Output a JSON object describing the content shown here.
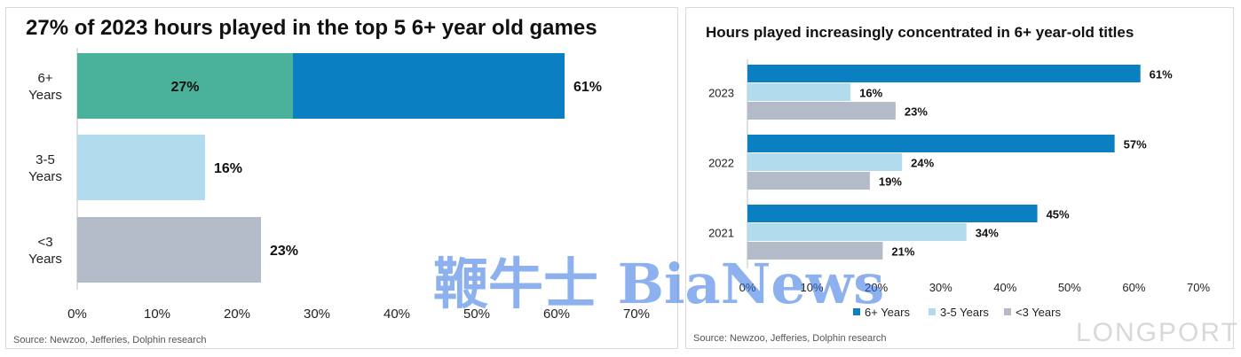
{
  "colors": {
    "six_plus": "#0a7fc1",
    "three_five": "#b3dbee",
    "under_three": "#b4bbc8",
    "top5": "#4ab19a"
  },
  "chart_data": [
    {
      "type": "bar",
      "orientation": "horizontal",
      "title": "27% of 2023 hours played in the top 5 6+ year old games",
      "categories": [
        "6+ Years",
        "3-5 Years",
        "<3 Years"
      ],
      "values": [
        61,
        16,
        23
      ],
      "value_labels": [
        "61%",
        "16%",
        "23%"
      ],
      "highlight": {
        "category": "6+ Years",
        "value": 27,
        "label": "27%",
        "color": "#4ab19a"
      },
      "xlim": [
        0,
        70
      ],
      "xticks": [
        "0%",
        "10%",
        "20%",
        "30%",
        "40%",
        "50%",
        "60%",
        "70%"
      ],
      "source": "Source: Newzoo, Jefferies, Dolphin research",
      "grid": false
    },
    {
      "type": "bar",
      "orientation": "horizontal",
      "title": "Hours played increasingly concentrated in 6+ year-old titles",
      "categories": [
        "2023",
        "2022",
        "2021"
      ],
      "series": [
        {
          "name": "6+ Years",
          "values": [
            61,
            57,
            45
          ],
          "labels": [
            "61%",
            "57%",
            "45%"
          ],
          "color": "#0a7fc1"
        },
        {
          "name": "3-5 Years",
          "values": [
            16,
            24,
            34
          ],
          "labels": [
            "16%",
            "24%",
            "34%"
          ],
          "color": "#b3dbee"
        },
        {
          "name": "<3 Years",
          "values": [
            23,
            19,
            21
          ],
          "labels": [
            "23%",
            "19%",
            "21%"
          ],
          "color": "#b4bbc8"
        }
      ],
      "xlim": [
        0,
        70
      ],
      "xticks": [
        "0%",
        "10%",
        "20%",
        "30%",
        "40%",
        "50%",
        "60%",
        "70%"
      ],
      "legend": "bottom",
      "source": "Source: Newzoo, Jefferies, Dolphin research",
      "grid": false
    }
  ],
  "watermarks": {
    "bianews": "鞭牛士 BiaNews",
    "longport": "LONGPORT"
  }
}
